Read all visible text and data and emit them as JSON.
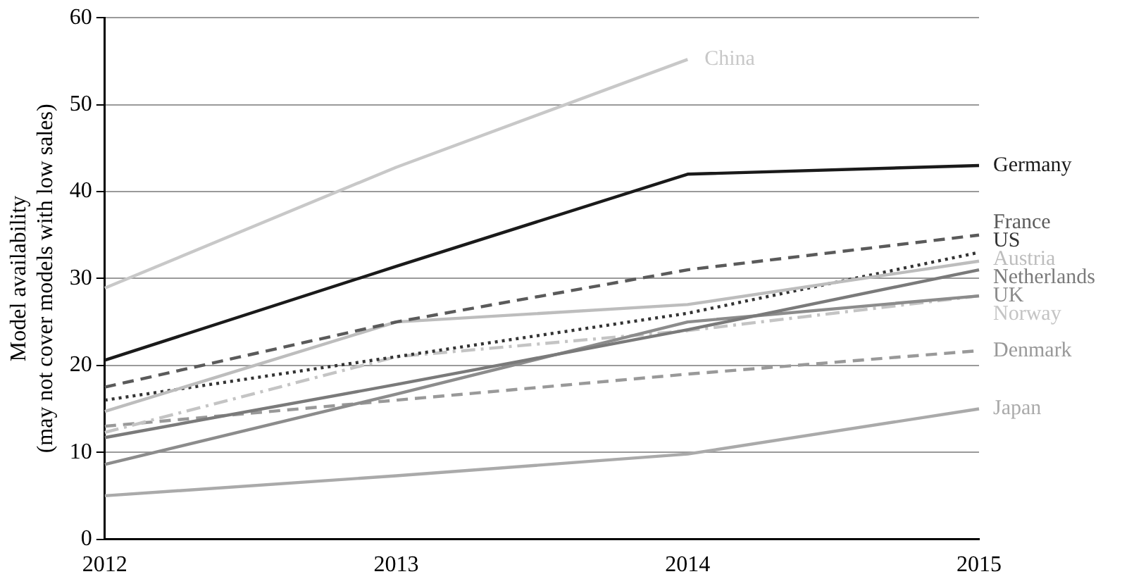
{
  "chart_data": {
    "type": "line",
    "ylabel": "Model availability (may not cover models with low sales)",
    "categories": [
      "2012",
      "2013",
      "2014",
      "2015"
    ],
    "ylim": [
      0,
      60
    ],
    "yticks": [
      0,
      10,
      20,
      30,
      40,
      50,
      60
    ],
    "grid": "y",
    "legend": false,
    "marker": "none",
    "series": [
      {
        "name": "China",
        "color": "#c8c8c8",
        "line_style": "solid",
        "values": [
          28.9,
          42.8,
          55.2,
          null
        ]
      },
      {
        "name": "Germany",
        "color": "#1a1a1a",
        "line_style": "solid",
        "values": [
          20.6,
          31.4,
          42,
          43
        ]
      },
      {
        "name": "Netherlands",
        "color": "#7a7a7a",
        "line_style": "solid",
        "values": [
          11.7,
          17.8,
          24.1,
          31
        ]
      },
      {
        "name": "France",
        "color": "#5a5a5a",
        "line_style": "dashed",
        "values": [
          17.5,
          25,
          31,
          35
        ]
      },
      {
        "name": "Austria",
        "color": "#bdbdbd",
        "line_style": "solid",
        "values": [
          14.7,
          25,
          27,
          32
        ]
      },
      {
        "name": "US",
        "color": "#333333",
        "line_style": "dotted",
        "values": [
          16,
          21,
          26,
          33
        ]
      },
      {
        "name": "UK",
        "color": "#8c8c8c",
        "line_style": "solid",
        "values": [
          8.6,
          16.7,
          25,
          28
        ]
      },
      {
        "name": "Norway",
        "color": "#c4c4c4",
        "line_style": "dashdot",
        "values": [
          12.3,
          21,
          24,
          28
        ]
      },
      {
        "name": "Denmark",
        "color": "#999999",
        "line_style": "dashed",
        "values": [
          13,
          16,
          19,
          21.7
        ]
      },
      {
        "name": "Japan",
        "color": "#aaaaaa",
        "line_style": "solid",
        "values": [
          5,
          7.3,
          9.8,
          15
        ]
      }
    ]
  }
}
